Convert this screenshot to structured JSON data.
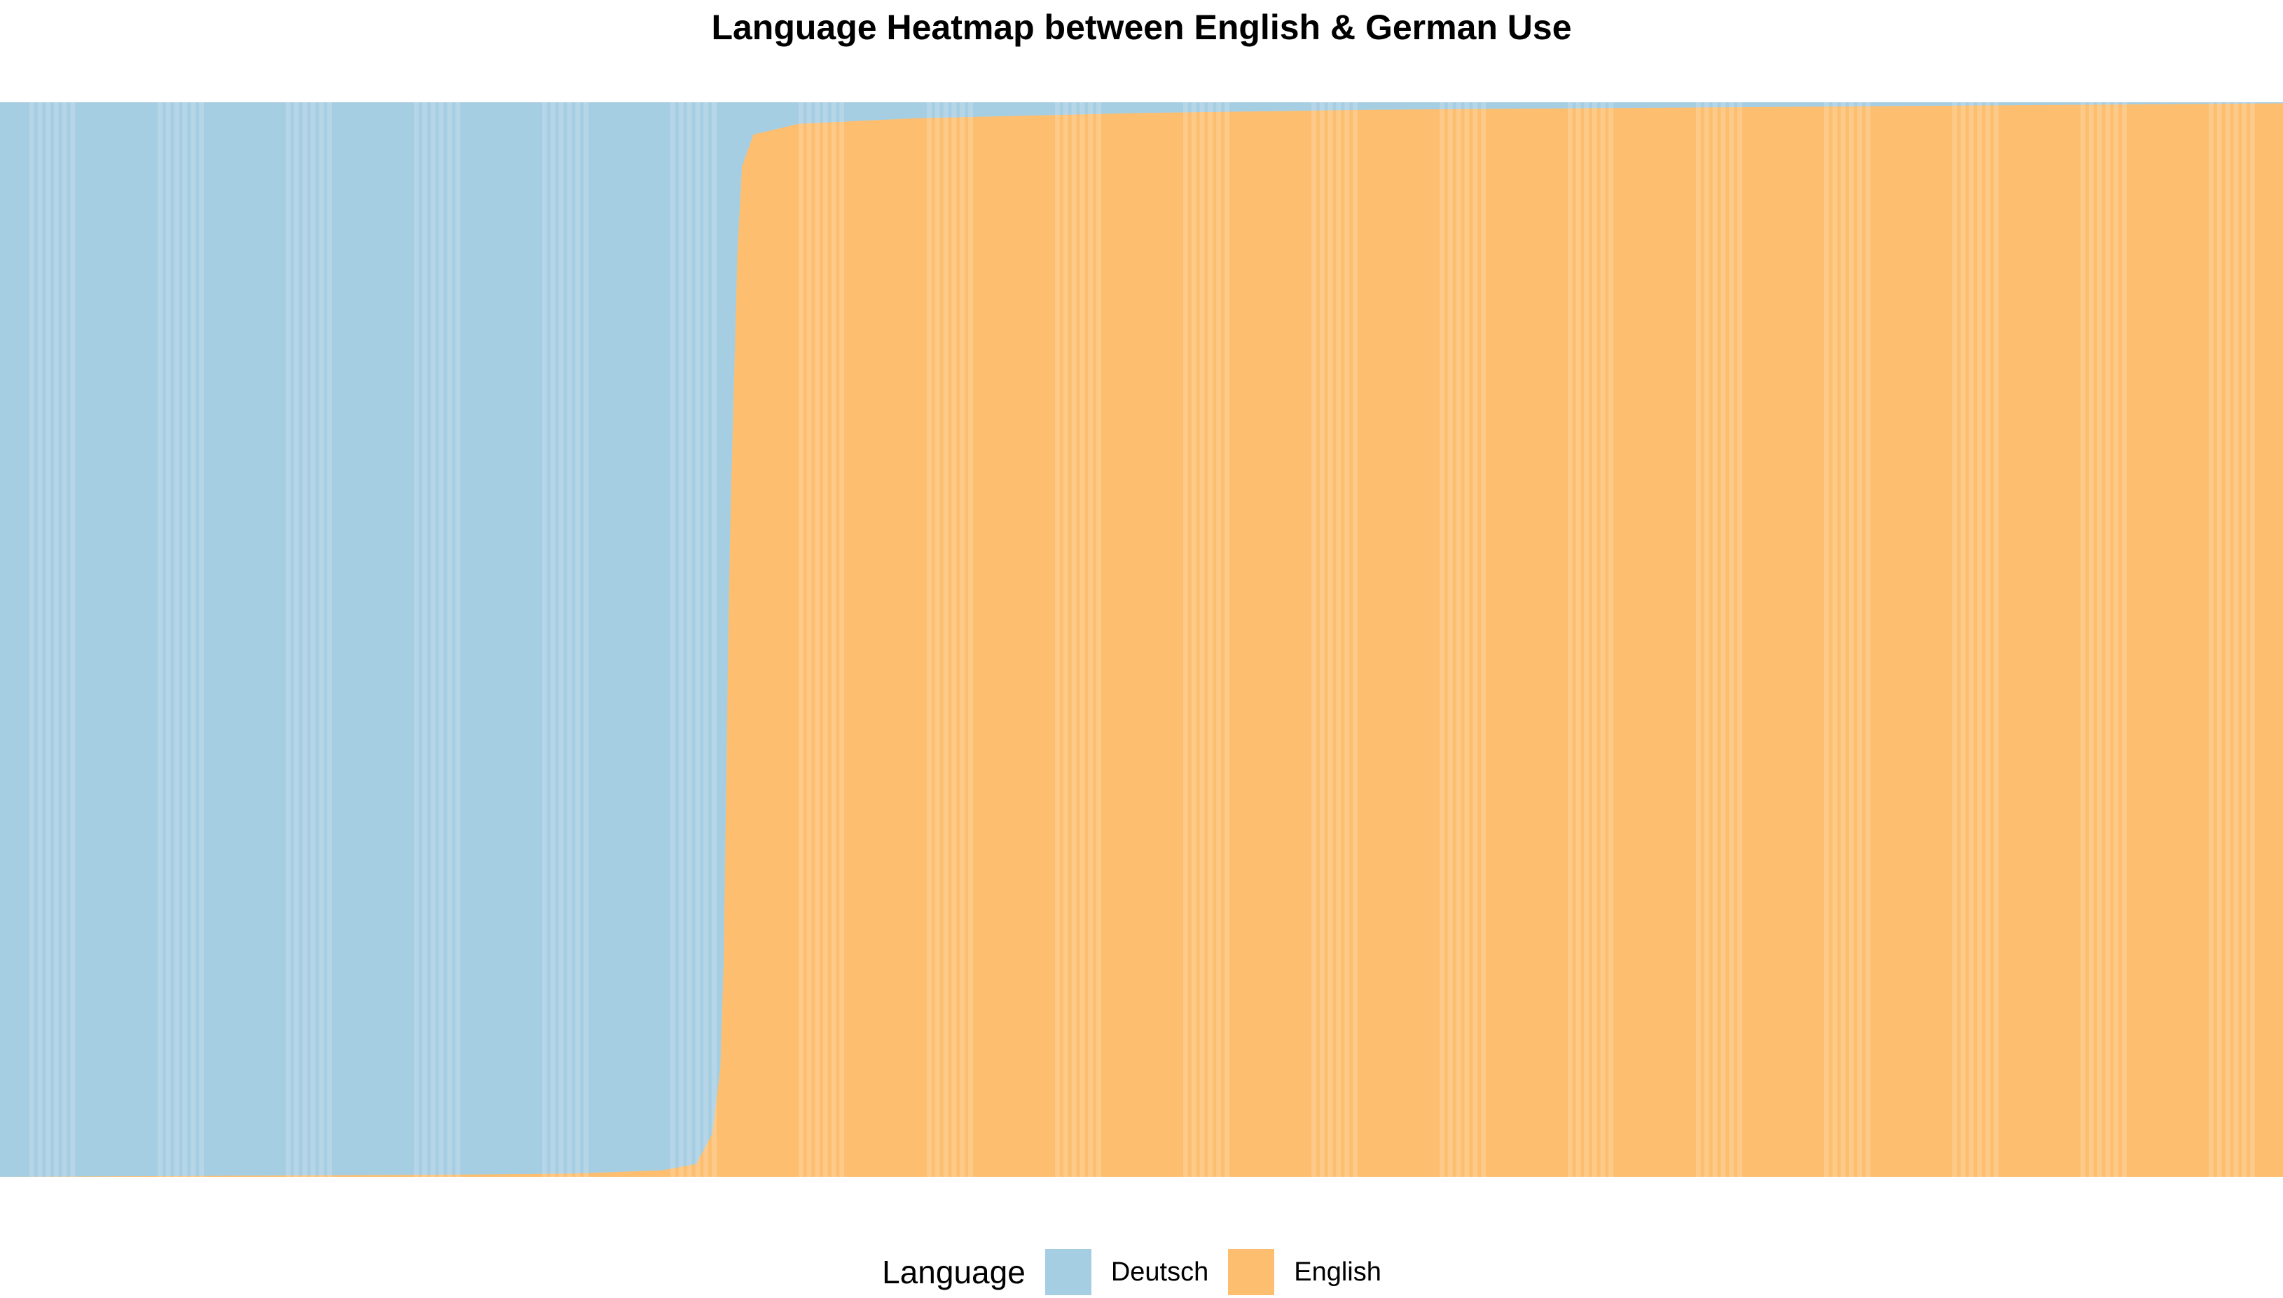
{
  "chart_data": {
    "type": "area",
    "title": "Language Heatmap between English & German Use",
    "xlabel": "",
    "ylabel": "",
    "grid": false,
    "legend_title": "Language",
    "legend_position": "bottom",
    "stacking": "fill",
    "ylim": [
      0,
      1
    ],
    "series": [
      {
        "name": "Deutsch",
        "color": "#A6CEE3"
      },
      {
        "name": "English",
        "color": "#FDBF6F"
      }
    ],
    "english_share": {
      "x": [
        0,
        0.1,
        0.2,
        0.25,
        0.29,
        0.305,
        0.312,
        0.3155,
        0.317,
        0.318,
        0.319,
        0.32,
        0.3215,
        0.323,
        0.325,
        0.33,
        0.35,
        0.4,
        0.5,
        0.6,
        0.8,
        1.0
      ],
      "y": [
        0.0,
        0.001,
        0.002,
        0.003,
        0.006,
        0.012,
        0.04,
        0.1,
        0.2,
        0.35,
        0.5,
        0.62,
        0.74,
        0.86,
        0.94,
        0.97,
        0.98,
        0.985,
        0.99,
        0.993,
        0.996,
        0.999
      ]
    }
  }
}
